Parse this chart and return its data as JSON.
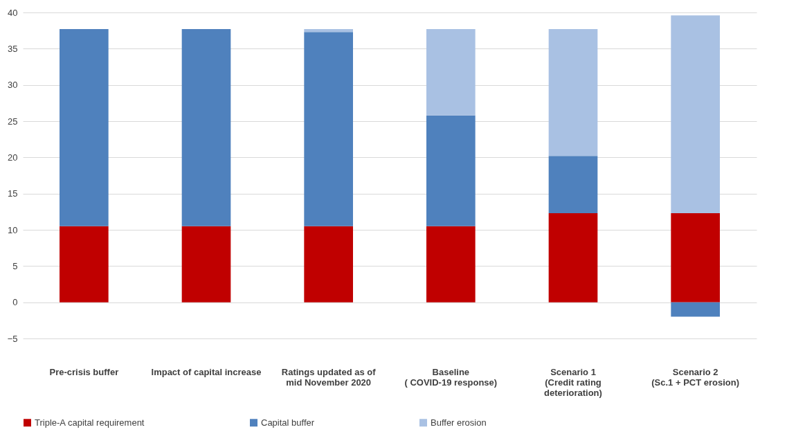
{
  "chart_data": {
    "type": "bar",
    "stacked": true,
    "categories": [
      "Pre-crisis buffer",
      "Impact of capital increase",
      "Ratings updated as of\nmid November 2020",
      "Baseline\n( COVID-19 response)",
      "Scenario 1\n(Credit rating\ndeterioration)",
      "Scenario 2\n(Sc.1 + PCT erosion)"
    ],
    "series": [
      {
        "name": "Triple-A capital requirement",
        "color": "#c00000",
        "values": [
          10.5,
          10.5,
          10.5,
          10.5,
          12.3,
          12.3
        ]
      },
      {
        "name": "Capital buffer",
        "color": "#4f81bd",
        "values": [
          27.2,
          27.2,
          26.8,
          15.3,
          7.9,
          -2.0
        ]
      },
      {
        "name": "Buffer erosion",
        "color": "#a9c1e3",
        "values": [
          null,
          null,
          0.4,
          11.9,
          17.5,
          27.3
        ]
      }
    ],
    "ylim": [
      -5,
      40
    ],
    "yticks": [
      -5,
      0,
      5,
      10,
      15,
      20,
      25,
      30,
      35,
      40
    ],
    "grid": "y",
    "legend": "bottom"
  }
}
